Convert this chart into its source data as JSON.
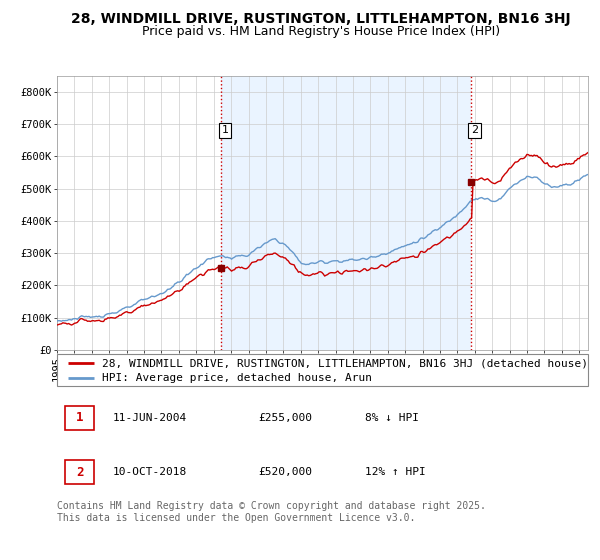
{
  "title": "28, WINDMILL DRIVE, RUSTINGTON, LITTLEHAMPTON, BN16 3HJ",
  "subtitle": "Price paid vs. HM Land Registry's House Price Index (HPI)",
  "ylabel_ticks": [
    "£0",
    "£100K",
    "£200K",
    "£300K",
    "£400K",
    "£500K",
    "£600K",
    "£700K",
    "£800K"
  ],
  "ytick_values": [
    0,
    100000,
    200000,
    300000,
    400000,
    500000,
    600000,
    700000,
    800000
  ],
  "ylim": [
    0,
    850000
  ],
  "xlim_start": 1995.0,
  "xlim_end": 2025.5,
  "legend_line1": "28, WINDMILL DRIVE, RUSTINGTON, LITTLEHAMPTON, BN16 3HJ (detached house)",
  "legend_line2": "HPI: Average price, detached house, Arun",
  "transaction1_date": 2004.44,
  "transaction1_price": 255000,
  "transaction1_label": "1",
  "transaction1_text": "11-JUN-2004",
  "transaction1_amount": "£255,000",
  "transaction1_pct": "8% ↓ HPI",
  "transaction2_date": 2018.77,
  "transaction2_price": 520000,
  "transaction2_label": "2",
  "transaction2_text": "10-OCT-2018",
  "transaction2_amount": "£520,000",
  "transaction2_pct": "12% ↑ HPI",
  "vline_color": "#cc0000",
  "vline_style": ":",
  "hpi_color": "#6699cc",
  "price_color": "#cc0000",
  "marker_color": "#880000",
  "shade_color": "#ddeeff",
  "footnote": "Contains HM Land Registry data © Crown copyright and database right 2025.\nThis data is licensed under the Open Government Licence v3.0.",
  "background_color": "#ffffff",
  "grid_color": "#cccccc",
  "title_fontsize": 10,
  "subtitle_fontsize": 9,
  "tick_fontsize": 7.5,
  "legend_fontsize": 8,
  "footnote_fontsize": 7
}
